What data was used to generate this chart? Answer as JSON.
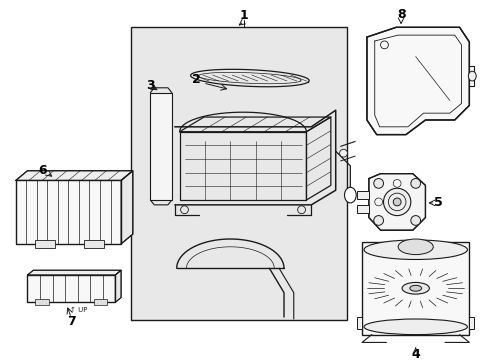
{
  "bg_color": "#ffffff",
  "fig_width": 4.89,
  "fig_height": 3.6,
  "dpi": 100,
  "line_color": "#1a1a1a",
  "light_gray": "#e8e8e8",
  "mid_gray": "#cccccc",
  "label_font_size": 9
}
